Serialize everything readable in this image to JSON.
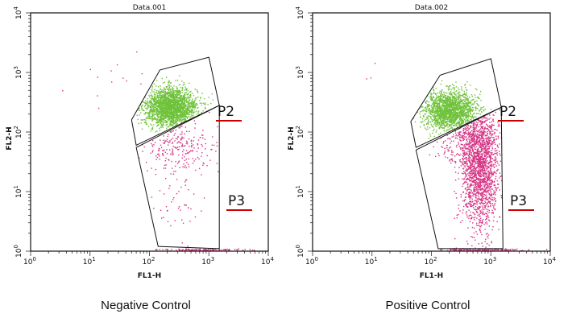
{
  "chart_data": [
    {
      "type": "scatter",
      "title": "Data.001",
      "caption": "Negative Control",
      "xlabel": "FL1-H",
      "ylabel": "FL2-H",
      "x_scale": "log",
      "y_scale": "log",
      "xlim": [
        1,
        10000
      ],
      "ylim": [
        1,
        10000
      ],
      "x_ticks": [
        {
          "value": 1,
          "base": "10",
          "exp": "0"
        },
        {
          "value": 10,
          "base": "10",
          "exp": "1"
        },
        {
          "value": 100,
          "base": "10",
          "exp": "2"
        },
        {
          "value": 1000,
          "base": "10",
          "exp": "3"
        },
        {
          "value": 10000,
          "base": "10",
          "exp": "4"
        }
      ],
      "y_ticks": [
        {
          "value": 1,
          "base": "10",
          "exp": "0"
        },
        {
          "value": 10,
          "base": "10",
          "exp": "1"
        },
        {
          "value": 100,
          "base": "10",
          "exp": "2"
        },
        {
          "value": 1000,
          "base": "10",
          "exp": "3"
        },
        {
          "value": 10000,
          "base": "10",
          "exp": "4"
        }
      ],
      "grid": false,
      "gates": [
        {
          "label": "P2",
          "color": "#111111",
          "label_underline_color": "#cc0000",
          "vertices": [
            [
              50,
              160
            ],
            [
              150,
              1100
            ],
            [
              1000,
              1800
            ],
            [
              1500,
              280
            ],
            [
              60,
              60
            ]
          ]
        },
        {
          "label": "P3",
          "color": "#111111",
          "label_underline_color": "#cc0000",
          "vertices": [
            [
              60,
              55
            ],
            [
              1500,
              280
            ],
            [
              1500,
              1.1
            ],
            [
              140,
              1.2
            ]
          ]
        }
      ],
      "series": [
        {
          "color": "#6fc23a",
          "clusters": [
            {
              "x_center": 230,
              "y_center": 260,
              "x_log_sd": 0.22,
              "y_log_sd": 0.16,
              "n": 2200,
              "gate": 0
            }
          ]
        },
        {
          "color": "#d63384",
          "clusters": [
            {
              "x_center": 300,
              "y_center": 60,
              "x_log_sd": 0.28,
              "y_log_sd": 0.2,
              "n": 220,
              "gate": 1
            },
            {
              "x_center": 300,
              "y_center": 8,
              "x_log_sd": 0.3,
              "y_log_sd": 0.45,
              "n": 60,
              "gate": 1
            },
            {
              "x_center": 700,
              "y_center": 1.05,
              "x_log_sd": 0.35,
              "y_log_sd": 0.01,
              "n": 120,
              "gate": -1
            },
            {
              "x_center": 20,
              "y_center": 600,
              "x_log_sd": 0.5,
              "y_log_sd": 0.4,
              "n": 14,
              "gate": -1
            }
          ]
        }
      ]
    },
    {
      "type": "scatter",
      "title": "Data.002",
      "caption": "Positive Control",
      "xlabel": "FL1-H",
      "ylabel": "FL2-H",
      "x_scale": "log",
      "y_scale": "log",
      "xlim": [
        1,
        10000
      ],
      "ylim": [
        1,
        10000
      ],
      "x_ticks": [
        {
          "value": 1,
          "base": "10",
          "exp": "0"
        },
        {
          "value": 10,
          "base": "10",
          "exp": "1"
        },
        {
          "value": 100,
          "base": "10",
          "exp": "2"
        },
        {
          "value": 1000,
          "base": "10",
          "exp": "3"
        },
        {
          "value": 10000,
          "base": "10",
          "exp": "4"
        }
      ],
      "y_ticks": [
        {
          "value": 1,
          "base": "10",
          "exp": "0"
        },
        {
          "value": 10,
          "base": "10",
          "exp": "1"
        },
        {
          "value": 100,
          "base": "10",
          "exp": "2"
        },
        {
          "value": 1000,
          "base": "10",
          "exp": "3"
        },
        {
          "value": 10000,
          "base": "10",
          "exp": "4"
        }
      ],
      "grid": false,
      "gates": [
        {
          "label": "P2",
          "color": "#111111",
          "label_underline_color": "#cc0000",
          "vertices": [
            [
              45,
              150
            ],
            [
              140,
              900
            ],
            [
              1000,
              1700
            ],
            [
              1500,
              260
            ],
            [
              55,
              55
            ]
          ]
        },
        {
          "label": "P3",
          "color": "#111111",
          "label_underline_color": "#cc0000",
          "vertices": [
            [
              55,
              50
            ],
            [
              1500,
              260
            ],
            [
              1600,
              1.1
            ],
            [
              130,
              1.1
            ]
          ]
        }
      ],
      "series": [
        {
          "color": "#6fc23a",
          "clusters": [
            {
              "x_center": 210,
              "y_center": 230,
              "x_log_sd": 0.22,
              "y_log_sd": 0.16,
              "n": 1800,
              "gate": 0
            }
          ]
        },
        {
          "color": "#d63384",
          "clusters": [
            {
              "x_center": 650,
              "y_center": 25,
              "x_log_sd": 0.16,
              "y_log_sd": 0.5,
              "n": 1800,
              "gate": 1
            },
            {
              "x_center": 350,
              "y_center": 80,
              "x_log_sd": 0.25,
              "y_log_sd": 0.2,
              "n": 250,
              "gate": 1
            },
            {
              "x_center": 700,
              "y_center": 1.05,
              "x_log_sd": 0.35,
              "y_log_sd": 0.01,
              "n": 160,
              "gate": -1
            },
            {
              "x_center": 6,
              "y_center": 1100,
              "x_log_sd": 0.2,
              "y_log_sd": 0.1,
              "n": 3,
              "gate": -1
            }
          ]
        }
      ]
    }
  ]
}
